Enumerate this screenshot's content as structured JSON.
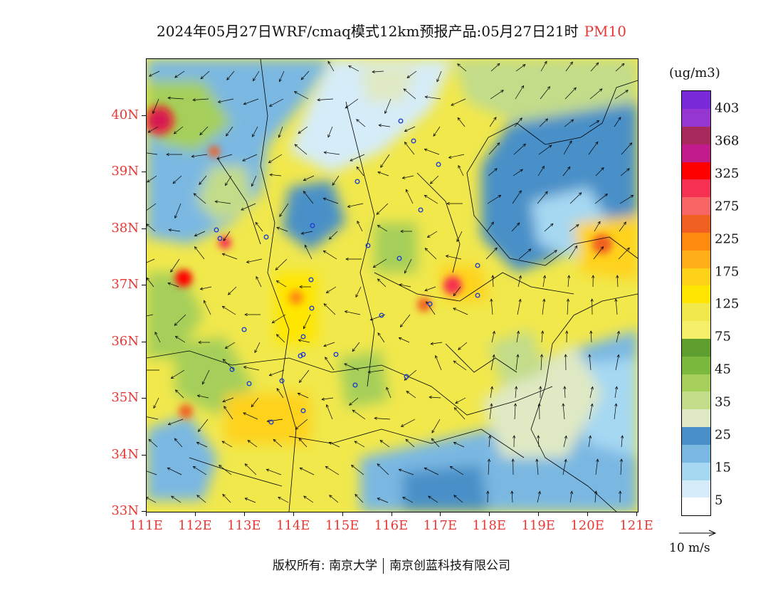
{
  "title": {
    "main": "2024年05月27日WRF/cmaq模式12km预报产品:05月27日21时",
    "pollutant": "PM10",
    "pollutant_color": "#e53935"
  },
  "map": {
    "lat_labels": [
      "40N",
      "39N",
      "38N",
      "37N",
      "36N",
      "35N",
      "34N",
      "33N"
    ],
    "lon_labels": [
      "111E",
      "112E",
      "113E",
      "114E",
      "115E",
      "116E",
      "117E",
      "118E",
      "119E",
      "120E",
      "121E"
    ],
    "axis_label_color": "#e53935"
  },
  "legend": {
    "unit": "(ug/m3)",
    "labels": [
      "403",
      "368",
      "325",
      "275",
      "225",
      "175",
      "125",
      "75",
      "45",
      "35",
      "25",
      "15",
      "5"
    ],
    "colors": [
      "#ffffff",
      "#d6ecf8",
      "#a6d8f2",
      "#7ab8e2",
      "#4a90c8",
      "#dfe9c3",
      "#c2dc8a",
      "#a5cf5a",
      "#7ab83e",
      "#5d9e2e",
      "#f5f06a",
      "#f1e84c",
      "#ffe600",
      "#ffd21a",
      "#ffae1a",
      "#ff8a10",
      "#f06020",
      "#f76565",
      "#f53050",
      "#ff0000",
      "#c21c8c",
      "#a82a5c",
      "#9636d0",
      "#7a2ad8"
    ]
  },
  "wind_reference": {
    "label": "10 m/s"
  },
  "copyright": {
    "prefix": "版权所有:",
    "org1": "南京大学",
    "org2": "南京创蓝科技有限公司"
  }
}
